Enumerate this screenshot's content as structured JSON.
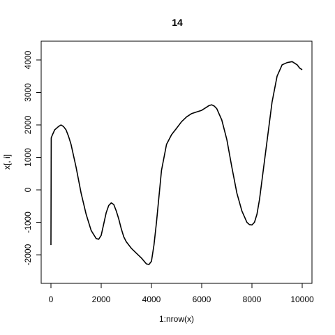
{
  "chart_data": {
    "type": "line",
    "title": "14",
    "xlabel": "1:nrow(x)",
    "ylabel": "x[, i]",
    "xlim": [
      0,
      10000
    ],
    "ylim": [
      -2600,
      4300
    ],
    "x_ticks": [
      0,
      2000,
      4000,
      6000,
      8000,
      10000
    ],
    "y_ticks": [
      -2000,
      -1000,
      0,
      1000,
      2000,
      3000,
      4000
    ],
    "x_tick_labels": [
      "0",
      "2000",
      "4000",
      "6000",
      "8000",
      "10000"
    ],
    "y_tick_labels": [
      "-2000",
      "-1000",
      "0",
      "1000",
      "2000",
      "3000",
      "4000"
    ],
    "grid": false,
    "series": [
      {
        "color": "#000000",
        "x": [
          0,
          10,
          60,
          150,
          300,
          400,
          500,
          600,
          700,
          800,
          1000,
          1200,
          1400,
          1600,
          1800,
          1900,
          2000,
          2100,
          2200,
          2300,
          2400,
          2500,
          2600,
          2700,
          2800,
          2900,
          3000,
          3200,
          3400,
          3600,
          3800,
          3900,
          4000,
          4100,
          4200,
          4400,
          4600,
          4800,
          5000,
          5200,
          5400,
          5600,
          5800,
          6000,
          6200,
          6300,
          6400,
          6500,
          6600,
          6800,
          7000,
          7200,
          7400,
          7600,
          7800,
          7900,
          8000,
          8100,
          8200,
          8300,
          8400,
          8600,
          8800,
          9000,
          9200,
          9400,
          9600,
          9700,
          9800,
          9900,
          10000
        ],
        "y": [
          -1700,
          1600,
          1700,
          1850,
          1950,
          2000,
          1950,
          1850,
          1650,
          1400,
          700,
          -100,
          -750,
          -1250,
          -1500,
          -1520,
          -1400,
          -1050,
          -700,
          -480,
          -400,
          -450,
          -650,
          -900,
          -1200,
          -1450,
          -1600,
          -1800,
          -1950,
          -2100,
          -2280,
          -2300,
          -2200,
          -1700,
          -1000,
          600,
          1400,
          1700,
          1900,
          2100,
          2250,
          2350,
          2400,
          2450,
          2550,
          2600,
          2620,
          2580,
          2500,
          2150,
          1550,
          700,
          -100,
          -650,
          -1000,
          -1070,
          -1080,
          -1000,
          -750,
          -300,
          300,
          1500,
          2700,
          3500,
          3850,
          3920,
          3950,
          3900,
          3850,
          3750,
          3700
        ]
      }
    ]
  }
}
